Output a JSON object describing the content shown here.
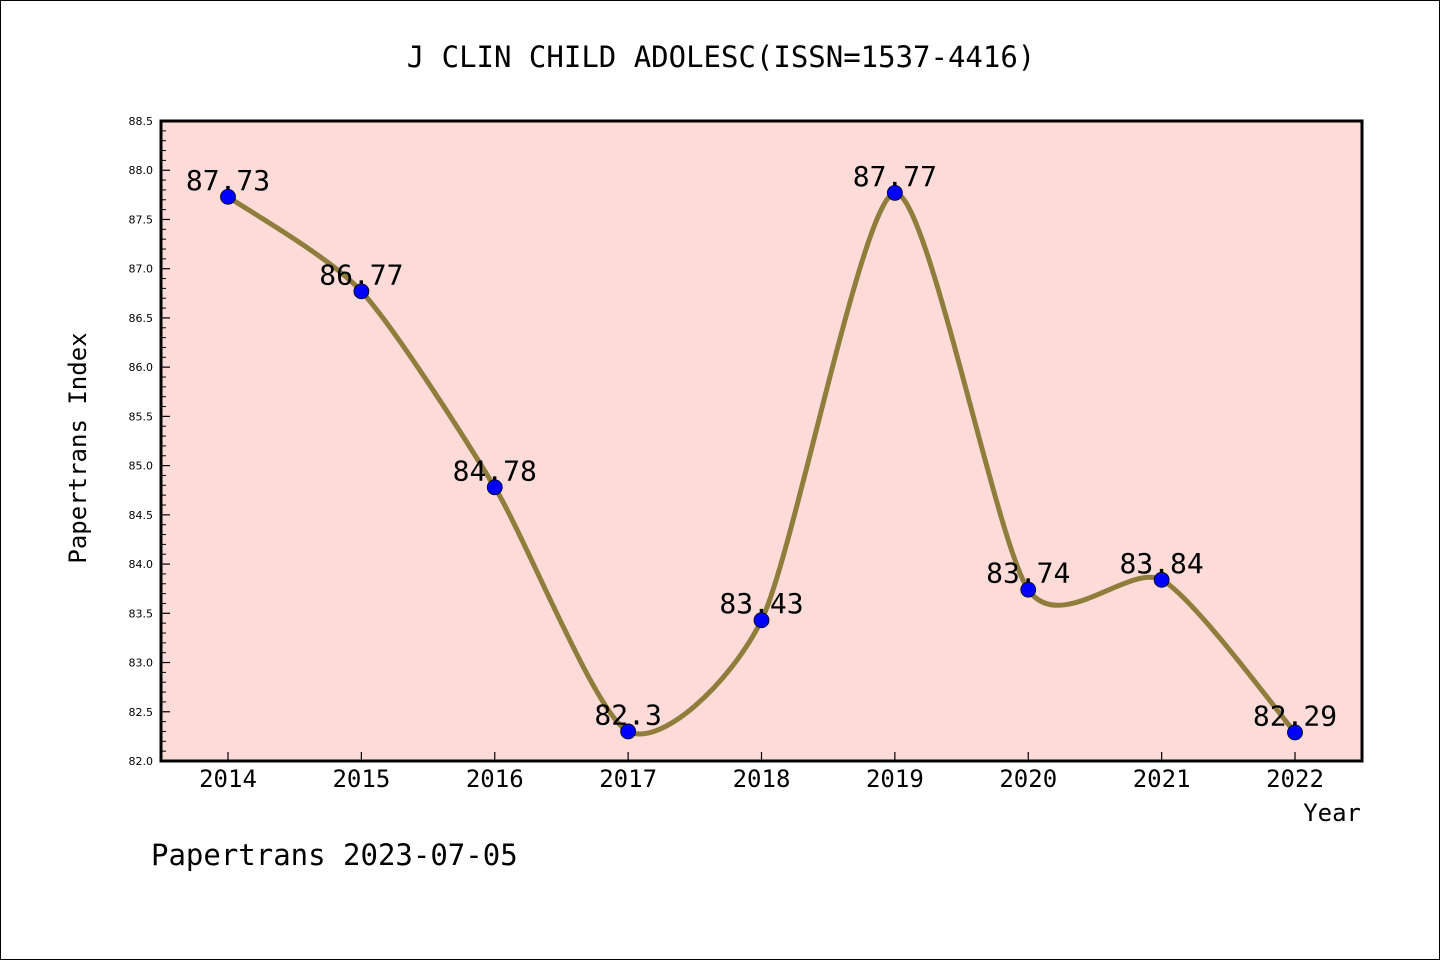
{
  "chart_data": {
    "type": "line",
    "title": "J CLIN CHILD ADOLESC(ISSN=1537-4416)",
    "xlabel": "Year",
    "ylabel": "Papertrans Index",
    "footer": "Papertrans 2023-07-05",
    "categories": [
      "2014",
      "2015",
      "2016",
      "2017",
      "2018",
      "2019",
      "2020",
      "2021",
      "2022"
    ],
    "values": [
      87.73,
      86.77,
      84.78,
      82.3,
      83.43,
      87.77,
      83.74,
      83.84,
      82.29
    ],
    "data_labels": [
      "87.73",
      "86.77",
      "84.78",
      "82.3",
      "83.43",
      "87.77",
      "83.74",
      "83.84",
      "82.29"
    ],
    "ylim": [
      82.0,
      88.5
    ],
    "yticks": [
      "82.0",
      "82.5",
      "83.0",
      "83.5",
      "84.0",
      "84.5",
      "85.0",
      "85.5",
      "86.0",
      "86.5",
      "87.0",
      "87.5",
      "88.0",
      "88.5"
    ],
    "grid": false,
    "legend": "none",
    "colors": {
      "plot_background": "#fddbd9",
      "line": "#8f7d3b",
      "marker": "#0000ff",
      "axis": "#000000"
    }
  }
}
